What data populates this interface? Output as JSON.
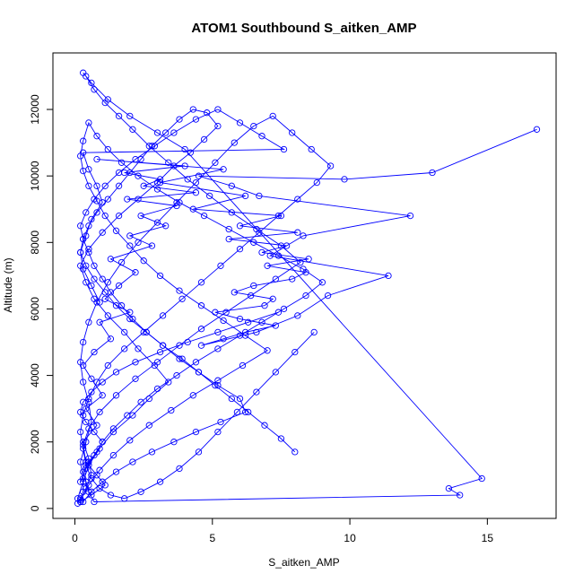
{
  "chart_data": {
    "type": "line",
    "title": "ATOM1 Southbound S_aitken_AMP",
    "xlabel": "S_aitken_AMP",
    "ylabel": "Altitude (m)",
    "xlim": [
      -0.8,
      17.5
    ],
    "ylim": [
      -300,
      13700
    ],
    "xticks": [
      0,
      5,
      10,
      15
    ],
    "yticks": [
      0,
      2000,
      4000,
      6000,
      8000,
      10000,
      12000
    ],
    "grid": false,
    "color": "#0000ff",
    "marker": "open-circle",
    "series": [
      {
        "x": [
          0.2,
          0.4,
          0.6,
          0.5,
          0.3,
          0.8,
          0.4,
          1.0,
          0.6,
          0.3,
          0.7,
          1.3,
          0.9,
          2.0,
          1.1,
          1.6,
          2.2,
          1.3,
          2.8,
          2.0,
          3.3,
          2.4,
          3.7,
          1.9,
          4.4,
          2.5,
          3.1,
          1.8,
          4.0,
          0.8,
          5.4,
          3.1,
          6.2,
          4.3,
          7.5,
          6.0,
          8.1,
          5.6,
          7.7,
          6.8,
          8.5,
          7.0,
          8.4,
          7.9,
          6.5,
          5.8,
          7.2,
          6.9,
          5.1,
          6.0,
          7.3,
          6.2,
          5.4,
          4.6,
          6.6,
          8.1,
          9.2,
          11.4,
          7.1,
          8.3,
          12.2,
          6.7,
          5.7,
          4.5,
          9.8,
          13.0,
          16.8
        ],
        "y": [
          200,
          600,
          1000,
          1500,
          2000,
          2500,
          3000,
          3400,
          3900,
          4300,
          4700,
          5100,
          5600,
          5900,
          6300,
          6700,
          7100,
          7500,
          7900,
          8200,
          8500,
          8800,
          9100,
          9300,
          9500,
          9700,
          9900,
          10100,
          10300,
          10500,
          10200,
          9800,
          9400,
          9000,
          8800,
          8500,
          8300,
          8100,
          7900,
          7700,
          7500,
          7300,
          7100,
          6900,
          6700,
          6500,
          6300,
          6100,
          5900,
          5700,
          5500,
          5300,
          5100,
          4900,
          5300,
          5800,
          6400,
          7000,
          7600,
          8200,
          8800,
          9400,
          9700,
          10000,
          9900,
          10100,
          11400
        ]
      },
      {
        "x": [
          0.1,
          0.3,
          0.5,
          0.9,
          1.4,
          2.1,
          2.7,
          3.4,
          2.9,
          2.3,
          1.8,
          1.2,
          0.7,
          0.4,
          0.2,
          0.5,
          1.0,
          1.6,
          2.3,
          3.0,
          3.6,
          4.2,
          4.7,
          5.2,
          4.8,
          4.3,
          3.8,
          3.3,
          2.8,
          2.4,
          2.0,
          1.6,
          1.2,
          0.8,
          0.5,
          0.3,
          0.2,
          0.4,
          0.7,
          1.1,
          1.5,
          2.0,
          2.6,
          3.2,
          3.9,
          4.5,
          5.1,
          5.7,
          6.3,
          6.9,
          7.5,
          8.0
        ],
        "y": [
          300,
          800,
          1300,
          1800,
          2300,
          2800,
          3300,
          3800,
          4300,
          4800,
          5300,
          5800,
          6300,
          6800,
          7300,
          7800,
          8300,
          8800,
          9300,
          9800,
          10300,
          10700,
          11100,
          11500,
          11900,
          12000,
          11700,
          11300,
          10900,
          10500,
          10100,
          9700,
          9300,
          8900,
          8500,
          8100,
          7700,
          7300,
          6900,
          6500,
          6100,
          5700,
          5300,
          4900,
          4500,
          4100,
          3700,
          3300,
          2900,
          2500,
          2100,
          1700
        ]
      },
      {
        "x": [
          0.2,
          0.6,
          1.1,
          0.8,
          0.4,
          0.3,
          0.5,
          0.9,
          1.5,
          2.2,
          3.0,
          3.8,
          4.6,
          5.5,
          6.4,
          7.3,
          8.2,
          7.5,
          6.6,
          5.7,
          4.9,
          4.1,
          3.4,
          2.7,
          2.1,
          1.6,
          1.1,
          0.7,
          0.4,
          0.3,
          0.6,
          1.2,
          2.0,
          3.0,
          4.0,
          14.8,
          13.6,
          14.0,
          0.7,
          0.5,
          0.4,
          0.3,
          0.5,
          0.8,
          1.0,
          0.7,
          0.4,
          0.2,
          0.3,
          0.6,
          1.0,
          1.5,
          2.2,
          3.1,
          4.1,
          5.2,
          6.3,
          7.4
        ],
        "y": [
          200,
          400,
          700,
          1000,
          1400,
          1900,
          2400,
          2900,
          3400,
          3900,
          4400,
          4900,
          5400,
          5900,
          6400,
          6900,
          7400,
          7900,
          8400,
          8900,
          9400,
          9900,
          10400,
          10900,
          11400,
          11800,
          12200,
          12600,
          13000,
          13100,
          12800,
          12300,
          11800,
          11300,
          10800,
          900,
          600,
          400,
          200,
          500,
          800,
          1100,
          1400,
          1700,
          2000,
          2300,
          2600,
          2900,
          3200,
          3500,
          3800,
          4100,
          4400,
          4700,
          5000,
          5300,
          5600,
          5900
        ]
      },
      {
        "x": [
          0.1,
          0.2,
          0.3,
          0.3,
          0.2,
          0.4,
          0.6,
          0.5,
          0.3,
          0.2,
          0.3,
          0.5,
          0.8,
          1.2,
          1.7,
          2.3,
          3.0,
          3.7,
          4.4,
          5.1,
          5.8,
          6.5,
          7.2,
          7.9,
          8.6,
          9.3,
          8.8,
          8.1,
          7.4,
          6.7,
          6.0,
          5.3,
          4.6,
          3.9,
          3.2,
          2.5,
          1.8,
          1.2,
          0.8,
          0.5,
          0.3,
          0.2,
          0.3,
          0.4,
          0.6,
          0.9,
          1.3,
          1.8,
          2.4,
          3.1,
          3.8,
          4.5,
          5.2,
          5.9,
          6.6,
          7.3,
          8.0,
          8.7
        ],
        "y": [
          150,
          300,
          500,
          900,
          1400,
          2000,
          2600,
          3200,
          3800,
          4400,
          5000,
          5600,
          6200,
          6800,
          7400,
          8000,
          8600,
          9200,
          9800,
          10400,
          11000,
          11500,
          11800,
          11300,
          10800,
          10300,
          9800,
          9300,
          8800,
          8300,
          7800,
          7300,
          6800,
          6300,
          5800,
          5300,
          4800,
          4300,
          3800,
          3300,
          2800,
          2300,
          1800,
          1300,
          900,
          600,
          400,
          300,
          500,
          800,
          1200,
          1700,
          2300,
          2900,
          3500,
          4100,
          4700,
          5300
        ]
      },
      {
        "x": [
          0.2,
          0.5,
          0.9,
          1.4,
          2.0,
          2.7,
          3.5,
          4.3,
          5.2,
          6.1,
          7.0,
          6.2,
          5.4,
          4.6,
          3.8,
          3.1,
          2.5,
          2.0,
          1.5,
          1.1,
          0.8,
          0.5,
          0.3,
          0.2,
          0.3,
          0.5,
          0.8,
          1.2,
          1.7,
          2.3,
          3.0,
          3.8,
          4.7,
          5.6,
          6.5,
          7.4,
          8.3,
          9.0,
          8.4,
          7.6,
          6.8,
          6.0,
          5.2,
          4.4,
          3.7,
          3.0,
          2.4,
          1.9,
          1.4,
          1.0,
          0.7,
          0.4,
          0.2
        ],
        "y": [
          250,
          700,
          1150,
          1600,
          2050,
          2500,
          2950,
          3400,
          3850,
          4300,
          4750,
          5200,
          5650,
          6100,
          6550,
          7000,
          7450,
          7900,
          8350,
          8800,
          9250,
          9700,
          10150,
          10600,
          11050,
          11600,
          11200,
          10800,
          10400,
          10000,
          9600,
          9200,
          8800,
          8400,
          8000,
          7600,
          7200,
          6800,
          6400,
          6000,
          5600,
          5200,
          4800,
          4400,
          4000,
          3600,
          3200,
          2800,
          2400,
          2000,
          1600,
          1200,
          800
        ]
      },
      {
        "x": [
          0.3,
          0.6,
          1.0,
          1.5,
          2.1,
          2.8,
          3.6,
          4.4,
          5.3,
          6.2,
          6.0,
          5.2,
          4.5,
          3.8,
          3.2,
          2.6,
          2.1,
          1.7,
          1.3,
          1.0,
          0.7,
          0.5,
          0.3,
          0.2,
          0.4,
          0.7,
          1.1,
          1.6,
          2.2,
          2.9,
          3.6,
          4.4,
          5.2,
          6.0,
          6.8,
          7.6,
          0.3,
          0.5,
          0.8,
          1.0,
          0.6,
          0.4,
          0.2,
          0.3,
          0.6,
          0.9
        ],
        "y": [
          200,
          500,
          800,
          1100,
          1400,
          1700,
          2000,
          2300,
          2600,
          2900,
          3300,
          3700,
          4100,
          4500,
          4900,
          5300,
          5700,
          6100,
          6500,
          6900,
          7300,
          7700,
          8100,
          8500,
          8900,
          9300,
          9700,
          10100,
          10500,
          10900,
          11300,
          11700,
          12000,
          11600,
          11200,
          10800,
          10700,
          10200,
          9700,
          9200,
          8700,
          8200,
          7700,
          7200,
          6700,
          6200
        ]
      }
    ]
  }
}
